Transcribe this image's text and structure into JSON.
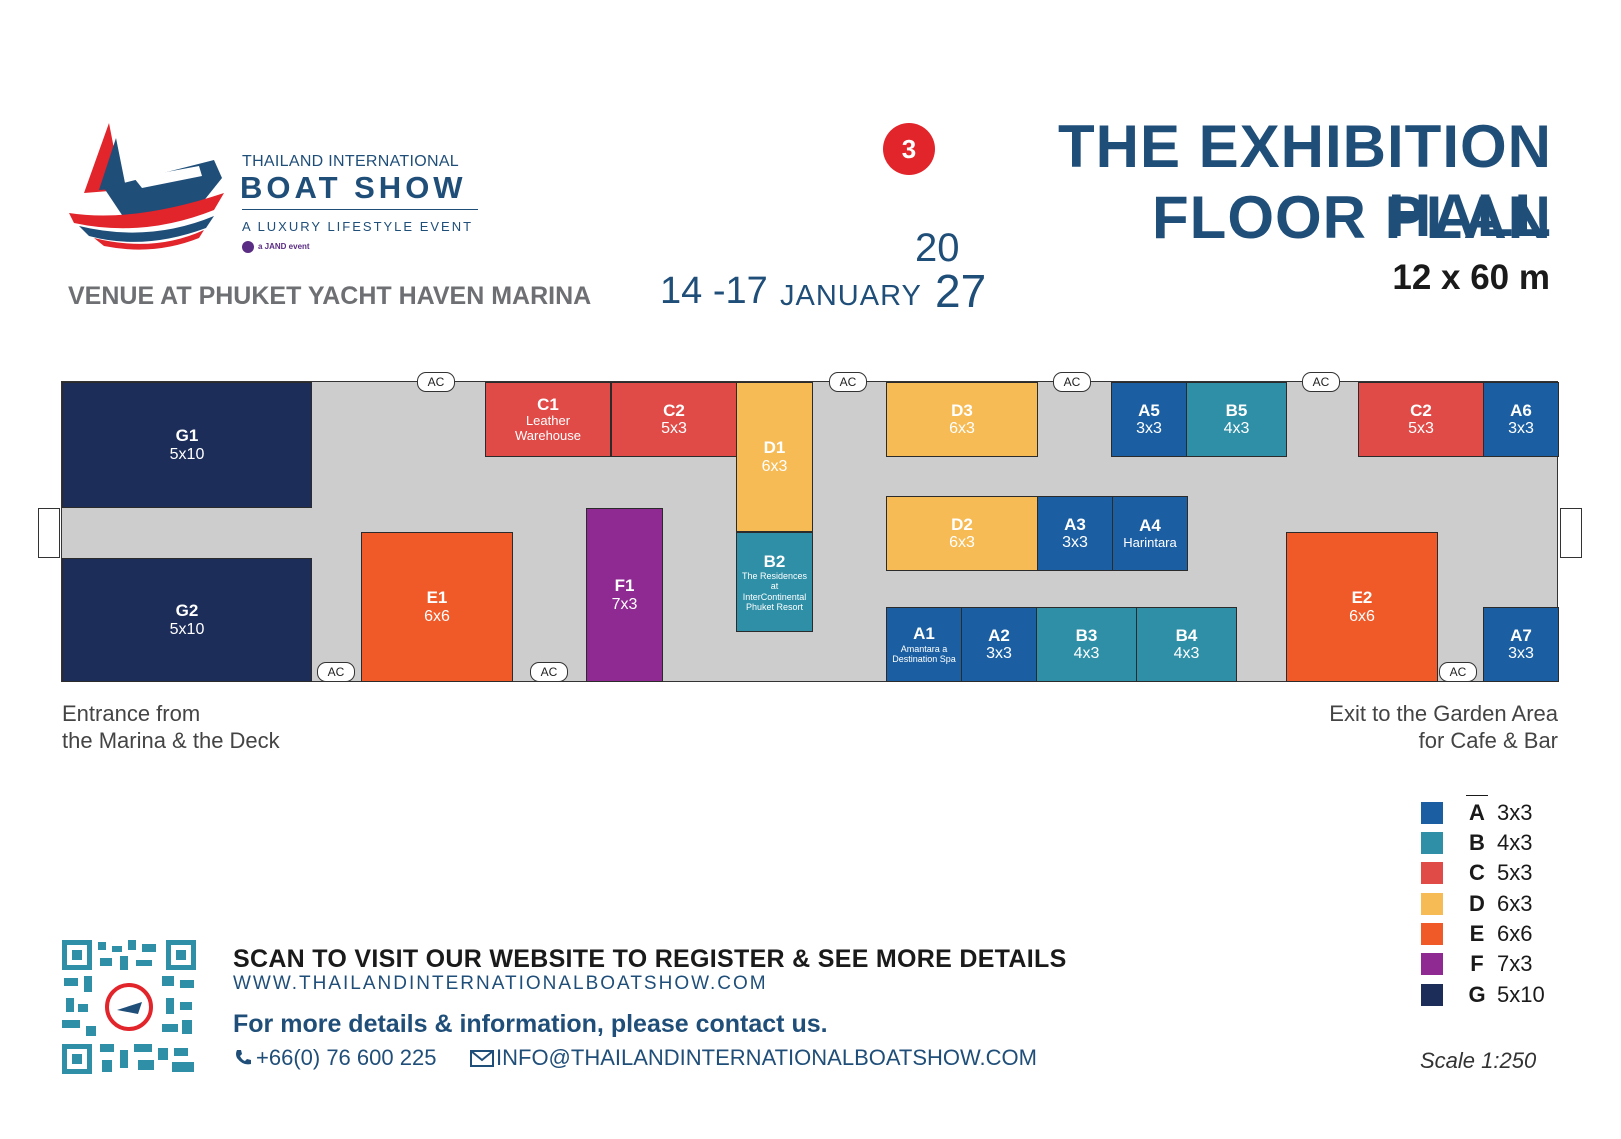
{
  "brand": {
    "line1": "THAILAND INTERNATIONAL",
    "line2": "BOAT SHOW",
    "tagline": "A LUXURY LIFESTYLE EVENT",
    "jand": "a JAND event"
  },
  "venue": "VENUE AT PHUKET YACHT HAVEN MARINA",
  "dates": "14 -17",
  "month": "JANUARY",
  "year_top": "20",
  "year_bottom": "27",
  "hall_number": "3",
  "title_line1": "THE EXHIBITION HALL",
  "title_line2": "FLOOR PLAN",
  "dimensions": "12 x 60 m",
  "booths": {
    "G1": {
      "code": "G1",
      "size": "5x10"
    },
    "G2": {
      "code": "G2",
      "size": "5x10"
    },
    "C1": {
      "code": "C1",
      "name": "Leather Warehouse"
    },
    "C2a": {
      "code": "C2",
      "size": "5x3"
    },
    "D1": {
      "code": "D1",
      "size": "6x3"
    },
    "B2": {
      "code": "B2",
      "name": "The Residences at InterContinental Phuket Resort"
    },
    "E1": {
      "code": "E1",
      "size": "6x6"
    },
    "F1": {
      "code": "F1",
      "size": "7x3"
    },
    "D3": {
      "code": "D3",
      "size": "6x3"
    },
    "D2": {
      "code": "D2",
      "size": "6x3"
    },
    "A3": {
      "code": "A3",
      "size": "3x3"
    },
    "A4": {
      "code": "A4",
      "name": "Harintara"
    },
    "A5": {
      "code": "A5",
      "size": "3x3"
    },
    "B5": {
      "code": "B5",
      "size": "4x3"
    },
    "C2b": {
      "code": "C2",
      "size": "5x3"
    },
    "A6": {
      "code": "A6",
      "size": "3x3"
    },
    "A1": {
      "code": "A1",
      "name": "Amantara a Destination Spa"
    },
    "A2": {
      "code": "A2",
      "size": "3x3"
    },
    "B3": {
      "code": "B3",
      "size": "4x3"
    },
    "B4": {
      "code": "B4",
      "size": "4x3"
    },
    "E2": {
      "code": "E2",
      "size": "6x6"
    },
    "A7": {
      "code": "A7",
      "size": "3x3"
    }
  },
  "ac_label": "AC",
  "entrance": {
    "line1": "Entrance from",
    "line2": "the Marina & the Deck"
  },
  "exit": {
    "line1": "Exit to the Garden Area",
    "line2": "for Cafe & Bar"
  },
  "legend": [
    {
      "letter": "A",
      "size": "3x3",
      "color": "#1b5fa2"
    },
    {
      "letter": "B",
      "size": "4x3",
      "color": "#2e8fa7"
    },
    {
      "letter": "C",
      "size": "5x3",
      "color": "#e04a47"
    },
    {
      "letter": "D",
      "size": "6x3",
      "color": "#f6bb55"
    },
    {
      "letter": "E",
      "size": "6x6",
      "color": "#f05a29"
    },
    {
      "letter": "F",
      "size": "7x3",
      "color": "#8e2a92"
    },
    {
      "letter": "G",
      "size": "5x10",
      "color": "#1d2d5a"
    }
  ],
  "scale": "Scale 1:250",
  "footer": {
    "scan": "SCAN TO VISIT OUR WEBSITE TO REGISTER & SEE MORE DETAILS",
    "website": "WWW.THAILANDINTERNATIONALBOATSHOW.COM",
    "more": "For more details & information, please contact us.",
    "phone": "+66(0) 76 600 225",
    "email": "INFO@THAILANDINTERNATIONALBOATSHOW.COM"
  },
  "icons": {
    "logo": "boat-show-logo",
    "phone": "phone-icon",
    "email": "envelope-icon",
    "qr": "qr-code"
  }
}
